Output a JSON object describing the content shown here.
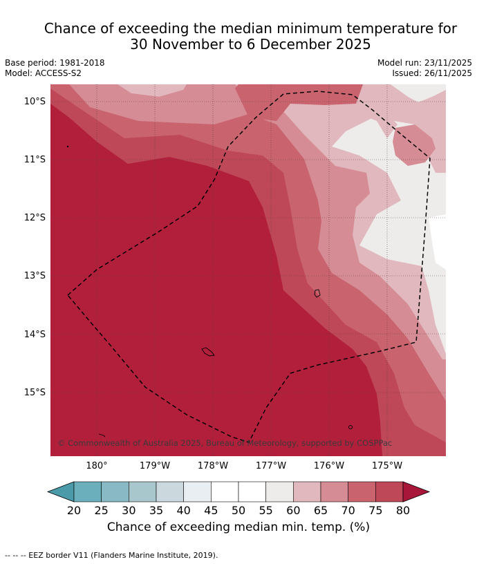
{
  "title": {
    "line1": "Chance of exceeding the median minimum temperature for",
    "line2": "30 November to 6 December 2025"
  },
  "meta": {
    "base_period": "Base period: 1981-2018",
    "model": "Model: ACCESS-S2",
    "model_run": "Model run: 23/11/2025",
    "issued": "Issued: 26/11/2025"
  },
  "map": {
    "lon_ticks": [
      "180°",
      "179°W",
      "178°W",
      "177°W",
      "176°W",
      "175°W"
    ],
    "lat_ticks": [
      "10°S",
      "11°S",
      "12°S",
      "13°S",
      "14°S",
      "15°S"
    ],
    "copyright": "© Commonwealth of Australia 2025, Bureau of Meteorology, supported by COSPPac"
  },
  "colorbar": {
    "ticks": [
      "20",
      "25",
      "30",
      "35",
      "40",
      "45",
      "50",
      "55",
      "60",
      "65",
      "70",
      "75",
      "80"
    ],
    "label": "Chance of exceeding median min. temp. (%)",
    "under_color": "#4a9aaa",
    "over_color": "#a8173a",
    "colors": [
      "#6aafbb",
      "#89b9c5",
      "#a8c7cc",
      "#cbd9de",
      "#e8eef1",
      "#ffffff",
      "#ffffff",
      "#eeeceb",
      "#e1b8bd",
      "#d58c95",
      "#c9646f",
      "#bf4858"
    ]
  },
  "footnote": "--  --  -- EEZ border V11 (Flanders Marine Institute, 2019)."
}
